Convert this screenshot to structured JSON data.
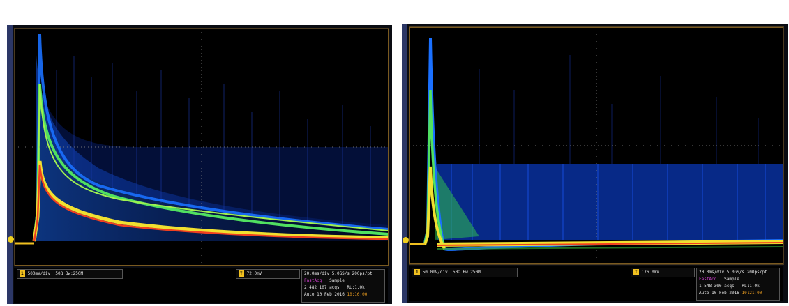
{
  "colors": {
    "screen_bg": "#000000",
    "grid": "#8a8a8a",
    "persistence_low": "#0a2aa0",
    "persistence_mid": "#1a70ff",
    "persistence_high": "#50e060",
    "persistence_peak": "#f0e030",
    "persistence_hot": "#f04020",
    "channel_yellow": "#f0c020",
    "magenta": "#d040d0"
  },
  "left": {
    "status": {
      "ch_label": "1",
      "ch_scale": "500mV/div",
      "ch_coupling": "50Ω",
      "ch_bw": "Bw:250M",
      "trig_icon": "T",
      "trig_value": "72.0mV",
      "timebase": "20.0ms/div  5.0GS/s",
      "timebase_extra": "200ps/pt",
      "mode": "FastAcq",
      "acq": "Sample",
      "acqs": "2 482 107 acqs",
      "rl": "RL:1.0k",
      "auto": "Auto",
      "date": "10 Feb 2016",
      "time": "10:16:00"
    }
  },
  "right": {
    "status": {
      "ch_label": "1",
      "ch_scale": "50.0mV/div",
      "ch_coupling": "50Ω",
      "ch_bw": "Bw:250M",
      "trig_icon": "T",
      "trig_value": "176.0mV",
      "timebase": "20.0ms/div  5.0GS/s",
      "timebase_extra": "200ps/pt",
      "mode": "FastAcq",
      "acq": "Sample",
      "acqs": "1 548 300 acqs",
      "rl": "RL:1.0k",
      "auto": "Auto",
      "date": "10 Feb 2016",
      "time": "10:21:00"
    }
  }
}
